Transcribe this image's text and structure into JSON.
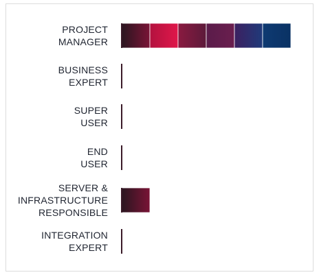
{
  "chart_data": {
    "type": "bar",
    "orientation": "horizontal",
    "stacked": true,
    "categories": [
      [
        "PROJECT",
        "MANAGER"
      ],
      [
        "BUSINESS",
        "EXPERT"
      ],
      [
        "SUPER",
        "USER"
      ],
      [
        "END",
        "USER"
      ],
      [
        "SERVER &",
        "INFRASTRUCTURE",
        "RESPONSIBLE"
      ],
      [
        "INTEGRATION",
        "EXPERT"
      ]
    ],
    "segment_colors": [
      [
        "#2a1620",
        "#7a1436"
      ],
      [
        "#b3123f",
        "#e0174a"
      ],
      [
        "#8a1a40",
        "#5c1a3a"
      ],
      [
        "#5a1c4a",
        "#6a1e4e"
      ],
      [
        "#3c2060",
        "#1f3a7a"
      ],
      [
        "#0e3a72",
        "#0a3264"
      ]
    ],
    "series": [
      {
        "values": [
          1,
          0,
          0,
          0,
          1,
          0
        ]
      },
      {
        "values": [
          1,
          0,
          0,
          0,
          0,
          0
        ]
      },
      {
        "values": [
          1,
          0,
          0,
          0,
          0,
          0
        ]
      },
      {
        "values": [
          1,
          0,
          0,
          0,
          0,
          0
        ]
      },
      {
        "values": [
          1,
          0,
          0,
          0,
          0,
          0
        ]
      },
      {
        "values": [
          1,
          0,
          0,
          0,
          0,
          0
        ]
      }
    ],
    "xlim": [
      0,
      6
    ],
    "grid": false,
    "legend": "none",
    "title": "",
    "xlabel": "",
    "ylabel": ""
  }
}
